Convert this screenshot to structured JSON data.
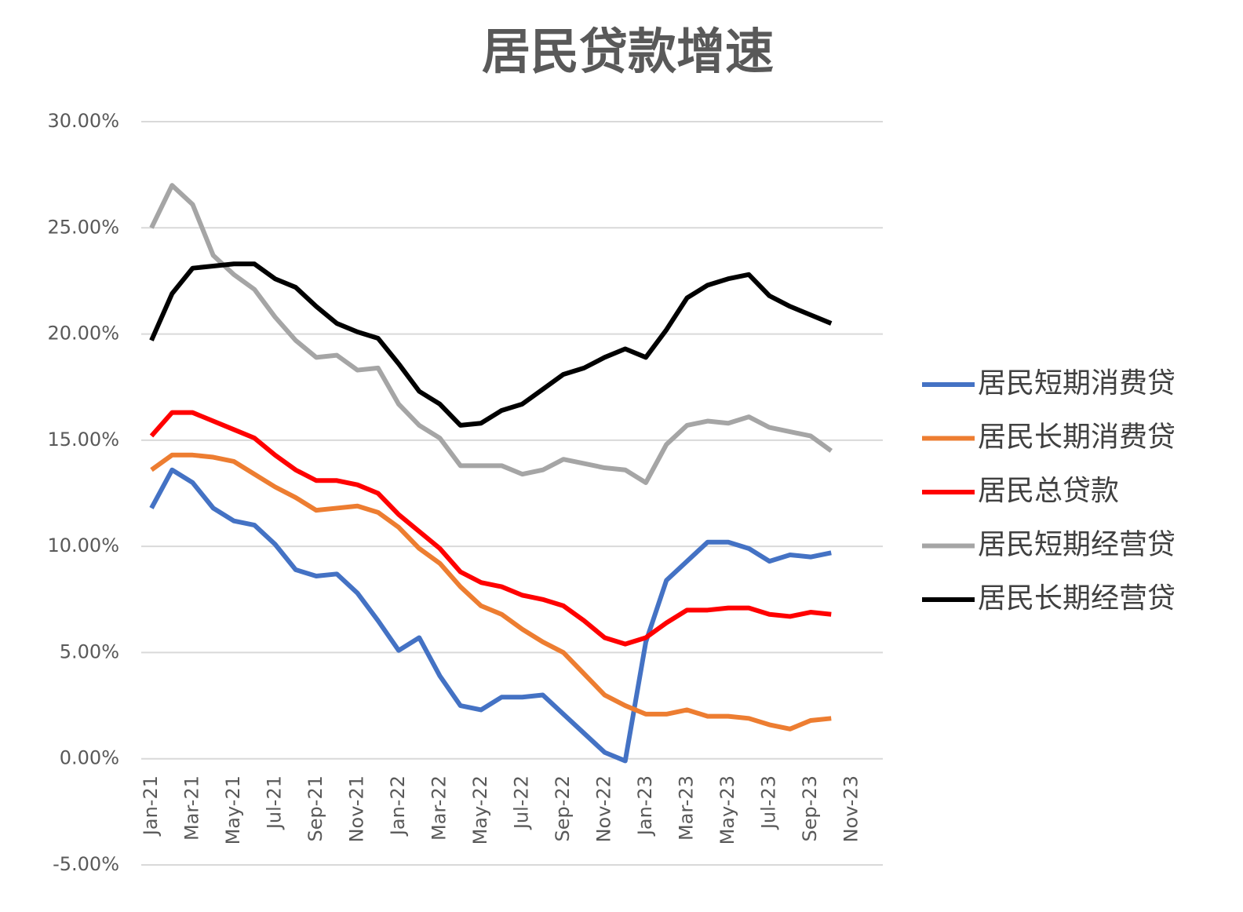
{
  "chart_data": {
    "type": "line",
    "title": "居民贷款增速",
    "categories": [
      "Jan-21",
      null,
      "Mar-21",
      null,
      "May-21",
      null,
      "Jul-21",
      null,
      "Sep-21",
      null,
      "Nov-21",
      null,
      "Jan-22",
      null,
      "Mar-22",
      null,
      "May-22",
      null,
      "Jul-22",
      null,
      "Sep-22",
      null,
      "Nov-22",
      null,
      "Jan-23",
      null,
      "Mar-23",
      null,
      "May-23",
      null,
      "Jul-23",
      null,
      "Sep-23",
      null,
      "Nov-23"
    ],
    "series": [
      {
        "name": "居民短期消费贷",
        "color": "#4472c4",
        "values": [
          11.8,
          13.6,
          13.0,
          11.8,
          11.2,
          11.0,
          10.1,
          8.9,
          8.6,
          8.7,
          7.8,
          6.5,
          5.1,
          5.7,
          3.9,
          2.5,
          2.3,
          2.9,
          2.9,
          3.0,
          2.1,
          1.2,
          0.3,
          -0.1,
          5.5,
          8.4,
          9.3,
          10.2,
          10.2,
          9.9,
          9.3,
          9.6,
          9.5,
          9.7,
          null
        ]
      },
      {
        "name": "居民长期消费贷",
        "color": "#ed7d31",
        "values": [
          13.6,
          14.3,
          14.3,
          14.2,
          14.0,
          13.4,
          12.8,
          12.3,
          11.7,
          11.8,
          11.9,
          11.6,
          10.9,
          9.9,
          9.2,
          8.1,
          7.2,
          6.8,
          6.1,
          5.5,
          5.0,
          4.0,
          3.0,
          2.5,
          2.1,
          2.1,
          2.3,
          2.0,
          2.0,
          1.9,
          1.6,
          1.4,
          1.8,
          1.9,
          null
        ]
      },
      {
        "name": "居民总贷款",
        "color": "#ff0000",
        "values": [
          15.2,
          16.3,
          16.3,
          15.9,
          15.5,
          15.1,
          14.3,
          13.6,
          13.1,
          13.1,
          12.9,
          12.5,
          11.5,
          10.7,
          9.9,
          8.8,
          8.3,
          8.1,
          7.7,
          7.5,
          7.2,
          6.5,
          5.7,
          5.4,
          5.7,
          6.4,
          7.0,
          7.0,
          7.1,
          7.1,
          6.8,
          6.7,
          6.9,
          6.8,
          null
        ]
      },
      {
        "name": "居民短期经营贷",
        "color": "#a5a5a5",
        "values": [
          25.0,
          27.0,
          26.1,
          23.7,
          22.8,
          22.1,
          20.8,
          19.7,
          18.9,
          19.0,
          18.3,
          18.4,
          16.7,
          15.7,
          15.1,
          13.8,
          13.8,
          13.8,
          13.4,
          13.6,
          14.1,
          13.9,
          13.7,
          13.6,
          13.0,
          14.8,
          15.7,
          15.9,
          15.8,
          16.1,
          15.6,
          15.4,
          15.2,
          14.5,
          null
        ]
      },
      {
        "name": "居民长期经营贷",
        "color": "#000000",
        "values": [
          19.7,
          21.9,
          23.1,
          23.2,
          23.3,
          23.3,
          22.6,
          22.2,
          21.3,
          20.5,
          20.1,
          19.8,
          18.6,
          17.3,
          16.7,
          15.7,
          15.8,
          16.4,
          16.7,
          17.4,
          18.1,
          18.4,
          18.9,
          19.3,
          18.9,
          20.2,
          21.7,
          22.3,
          22.6,
          22.8,
          21.8,
          21.3,
          20.9,
          20.5,
          null
        ]
      }
    ],
    "ylim": [
      -5,
      30
    ],
    "yticks": [
      {
        "value": -5,
        "label": "-5.00%"
      },
      {
        "value": 0,
        "label": "0.00%"
      },
      {
        "value": 5,
        "label": "5.00%"
      },
      {
        "value": 10,
        "label": "10.00%"
      },
      {
        "value": 15,
        "label": "15.00%"
      },
      {
        "value": 20,
        "label": "20.00%"
      },
      {
        "value": 25,
        "label": "25.00%"
      },
      {
        "value": 30,
        "label": "30.00%"
      }
    ],
    "grid": true,
    "legend": "right"
  }
}
